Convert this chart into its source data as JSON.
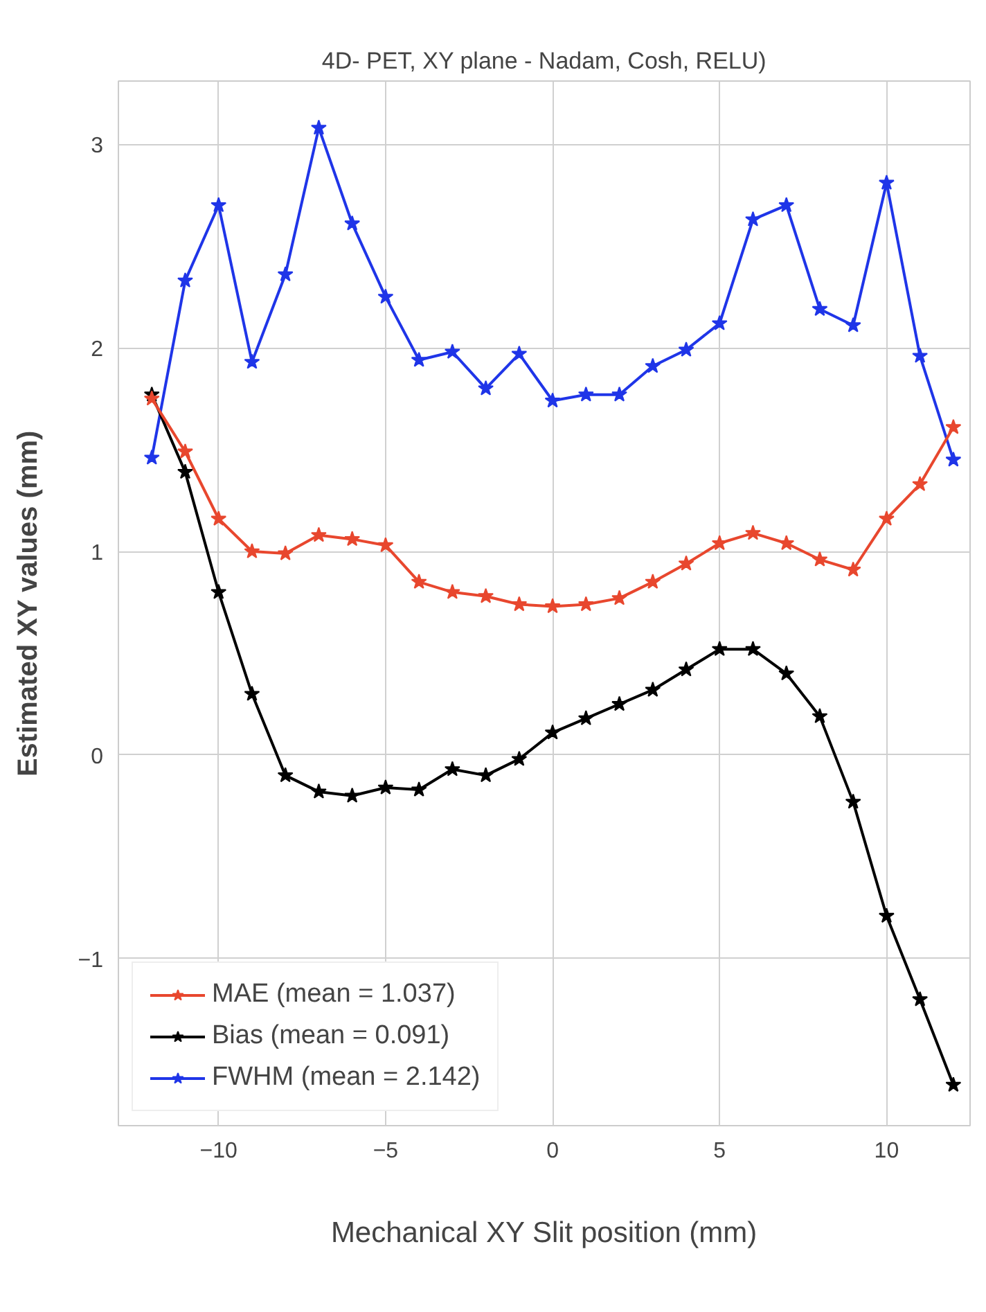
{
  "chart_data": {
    "type": "line",
    "title": "4D- PET, XY plane - Nadam, Cosh, RELU)",
    "xlabel": "Mechanical XY Slit position (mm)",
    "ylabel": "Estimated XY values (mm)",
    "x": [
      -12,
      -11,
      -10,
      -9,
      -8,
      -7,
      -6,
      -5,
      -4,
      -3,
      -2,
      -1,
      0,
      1,
      2,
      3,
      4,
      5,
      6,
      7,
      8,
      9,
      10,
      11,
      12
    ],
    "series": [
      {
        "name": "MAE (mean = 1.037)",
        "color": "#e8472e",
        "values": [
          1.75,
          1.49,
          1.16,
          1.0,
          0.99,
          1.08,
          1.06,
          1.03,
          0.85,
          0.8,
          0.78,
          0.74,
          0.73,
          0.74,
          0.77,
          0.85,
          0.94,
          1.04,
          1.09,
          1.04,
          0.96,
          0.91,
          1.16,
          1.33,
          1.61
        ]
      },
      {
        "name": "Bias (mean = 0.091)",
        "color": "#000000",
        "values": [
          1.77,
          1.39,
          0.8,
          0.3,
          -0.1,
          -0.18,
          -0.2,
          -0.16,
          -0.17,
          -0.07,
          -0.1,
          -0.02,
          0.11,
          0.18,
          0.25,
          0.32,
          0.42,
          0.52,
          0.52,
          0.4,
          0.19,
          -0.23,
          -0.79,
          -1.2,
          -1.62
        ]
      },
      {
        "name": "FWHM (mean = 2.142)",
        "color": "#1f35e8",
        "values": [
          1.46,
          2.33,
          2.7,
          1.93,
          2.36,
          3.08,
          2.61,
          2.25,
          1.94,
          1.98,
          1.8,
          1.97,
          1.74,
          1.77,
          1.77,
          1.91,
          1.99,
          2.12,
          2.63,
          2.7,
          2.19,
          2.11,
          2.81,
          1.96,
          1.45
        ]
      }
    ],
    "xlim": [
      -13.0,
      12.5
    ],
    "ylim": [
      -1.82,
      3.31
    ],
    "xticks": [
      -10,
      -5,
      0,
      5,
      10
    ],
    "yticks": [
      -1,
      0,
      1,
      2,
      3
    ],
    "grid": true,
    "legend": "bottom left",
    "marker": "star",
    "line_style": "solid"
  }
}
